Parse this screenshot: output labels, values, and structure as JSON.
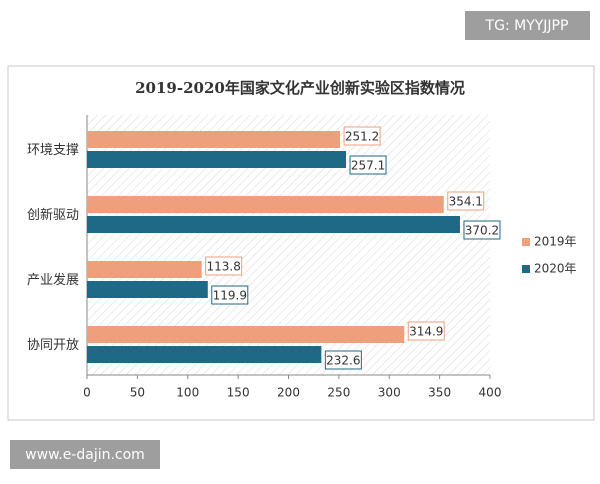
{
  "chart_data": {
    "type": "bar",
    "orientation": "horizontal",
    "title": "2019-2020年国家文化产业创新实验区指数情况",
    "categories": [
      "环境支撑",
      "创新驱动",
      "产业发展",
      "协同开放"
    ],
    "series": [
      {
        "name": "2019年",
        "color": "#ee9f7c",
        "values": [
          251.2,
          354.1,
          113.8,
          314.9
        ]
      },
      {
        "name": "2020年",
        "color": "#1c6a86",
        "values": [
          257.1,
          370.2,
          119.9,
          232.6
        ]
      }
    ],
    "xlim": [
      0,
      400
    ],
    "xticks": [
      0,
      50,
      100,
      150,
      200,
      250,
      300,
      350,
      400
    ],
    "grid": false,
    "legend": "right"
  },
  "watermarks": [
    "TG: MYYJJPP",
    "www.e-dajin.com"
  ]
}
